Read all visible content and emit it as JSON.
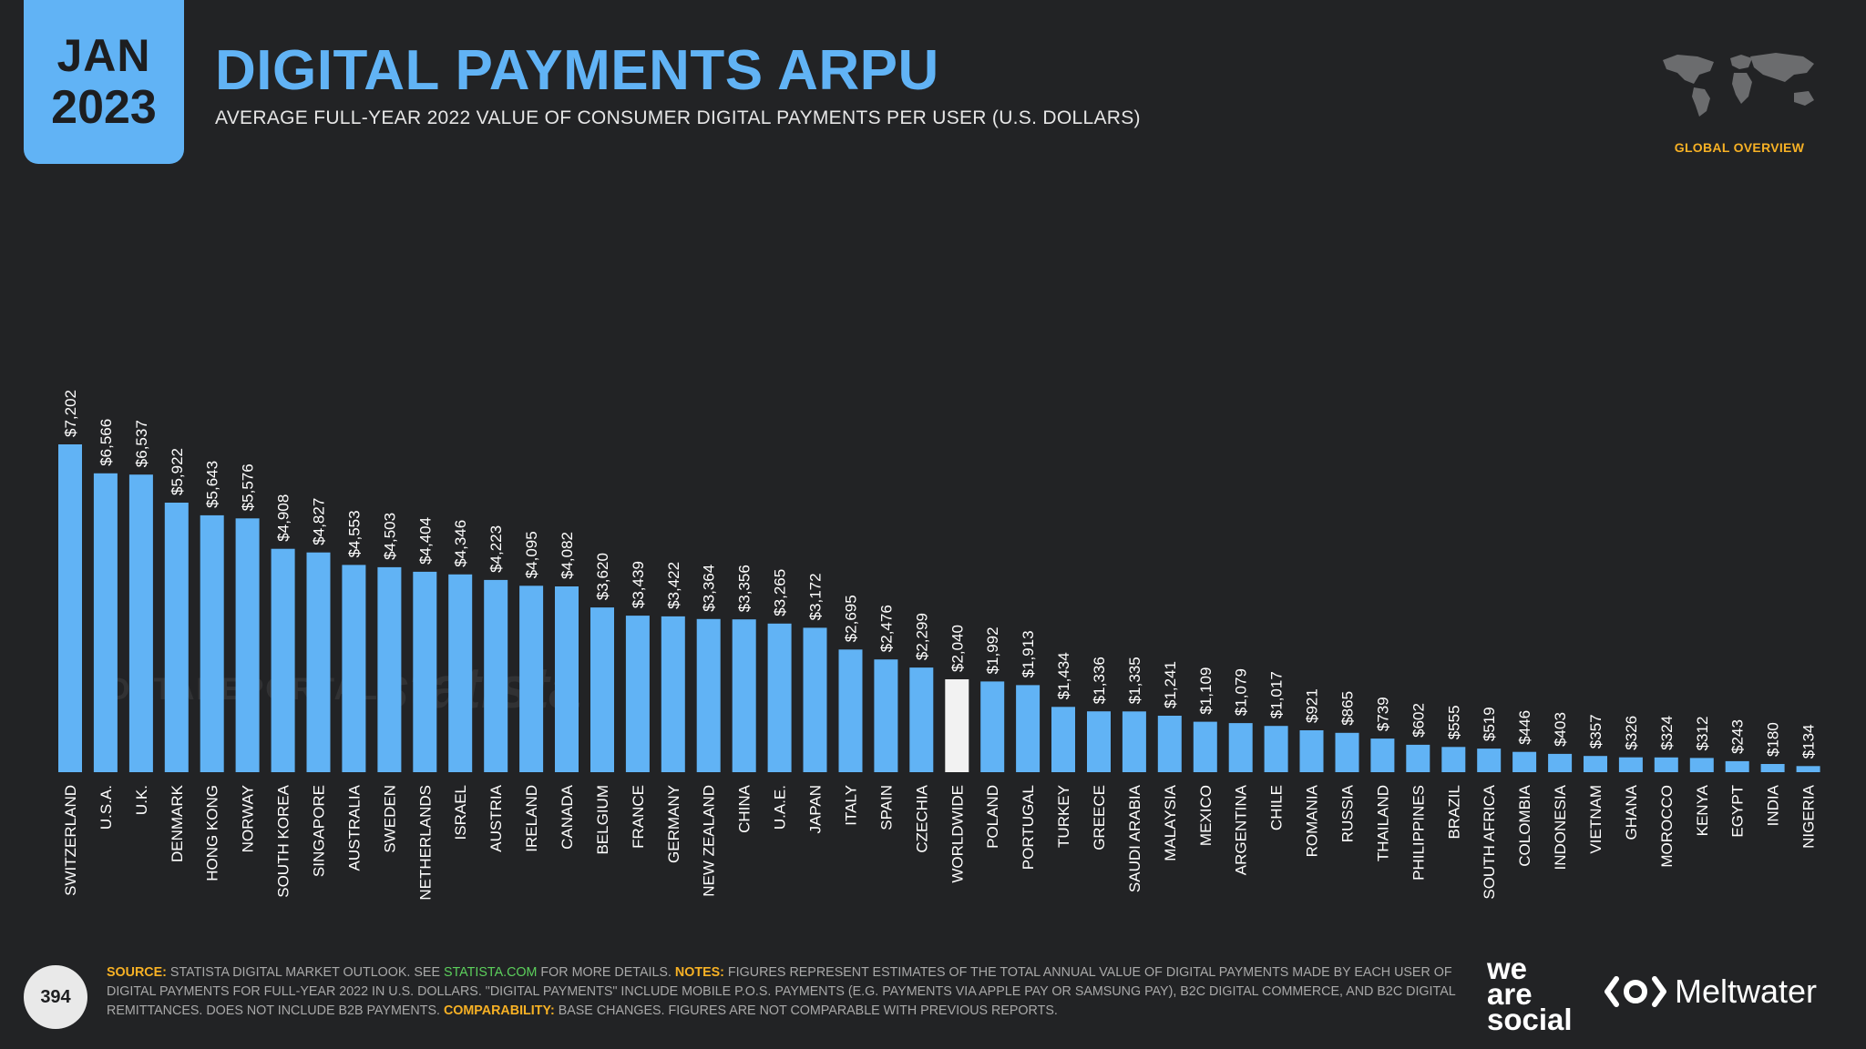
{
  "header": {
    "month": "JAN",
    "year": "2023",
    "title": "DIGITAL PAYMENTS ARPU",
    "subtitle": "AVERAGE FULL-YEAR 2022 VALUE OF CONSUMER DIGITAL PAYMENTS PER USER (U.S. DOLLARS)",
    "section": "GLOBAL OVERVIEW"
  },
  "watermarks": {
    "datareportal": "DATAREPORTAL",
    "statista": "statista"
  },
  "footer": {
    "page_number": "394",
    "source_label": "SOURCE:",
    "source_text": "STATISTA DIGITAL MARKET OUTLOOK. SEE",
    "source_link": "STATISTA.COM",
    "source_tail": "FOR MORE DETAILS.",
    "notes_label": "NOTES:",
    "notes_text": "FIGURES REPRESENT ESTIMATES OF THE TOTAL ANNUAL VALUE OF DIGITAL PAYMENTS MADE BY EACH USER OF DIGITAL PAYMENTS FOR FULL-YEAR 2022 IN U.S. DOLLARS. \"DIGITAL PAYMENTS\" INCLUDE MOBILE P.O.S. PAYMENTS (E.G. PAYMENTS VIA APPLE PAY OR SAMSUNG PAY), B2C DIGITAL COMMERCE, AND B2C DIGITAL REMITTANCES. DOES NOT INCLUDE B2B PAYMENTS.",
    "comparability_label": "COMPARABILITY:",
    "comparability_text": "BASE CHANGES. FIGURES ARE NOT COMPARABLE WITH PREVIOUS REPORTS.",
    "brand1_line1": "we",
    "brand1_line2": "are",
    "brand1_line3": "social",
    "brand2": "Meltwater"
  },
  "colors": {
    "bar": "#61b3f5",
    "highlight": "#f2f2f2",
    "accent": "#f7b125"
  },
  "chart_data": {
    "type": "bar",
    "categories": [
      "SWITZERLAND",
      "U.S.A.",
      "U.K.",
      "DENMARK",
      "HONG KONG",
      "NORWAY",
      "SOUTH KOREA",
      "SINGAPORE",
      "AUSTRALIA",
      "SWEDEN",
      "NETHERLANDS",
      "ISRAEL",
      "AUSTRIA",
      "IRELAND",
      "CANADA",
      "BELGIUM",
      "FRANCE",
      "GERMANY",
      "NEW ZEALAND",
      "CHINA",
      "U.A.E.",
      "JAPAN",
      "ITALY",
      "SPAIN",
      "CZECHIA",
      "WORLDWIDE",
      "POLAND",
      "PORTUGAL",
      "TURKEY",
      "GREECE",
      "SAUDI ARABIA",
      "MALAYSIA",
      "MEXICO",
      "ARGENTINA",
      "CHILE",
      "ROMANIA",
      "RUSSIA",
      "THAILAND",
      "PHILIPPINES",
      "BRAZIL",
      "SOUTH AFRICA",
      "COLOMBIA",
      "INDONESIA",
      "VIETNAM",
      "GHANA",
      "MOROCCO",
      "KENYA",
      "EGYPT",
      "INDIA",
      "NIGERIA"
    ],
    "values": [
      7202,
      6566,
      6537,
      5922,
      5643,
      5576,
      4908,
      4827,
      4553,
      4503,
      4404,
      4346,
      4223,
      4095,
      4082,
      3620,
      3439,
      3422,
      3364,
      3356,
      3265,
      3172,
      2695,
      2476,
      2299,
      2040,
      1992,
      1913,
      1434,
      1336,
      1335,
      1241,
      1109,
      1079,
      1017,
      921,
      865,
      739,
      602,
      555,
      519,
      446,
      403,
      357,
      326,
      324,
      312,
      243,
      180,
      134
    ],
    "labels": [
      "$7,202",
      "$6,566",
      "$6,537",
      "$5,922",
      "$5,643",
      "$5,576",
      "$4,908",
      "$4,827",
      "$4,553",
      "$4,503",
      "$4,404",
      "$4,346",
      "$4,223",
      "$4,095",
      "$4,082",
      "$3,620",
      "$3,439",
      "$3,422",
      "$3,364",
      "$3,356",
      "$3,265",
      "$3,172",
      "$2,695",
      "$2,476",
      "$2,299",
      "$2,040",
      "$1,992",
      "$1,913",
      "$1,434",
      "$1,336",
      "$1,335",
      "$1,241",
      "$1,109",
      "$1,079",
      "$1,017",
      "$921",
      "$865",
      "$739",
      "$602",
      "$555",
      "$519",
      "$446",
      "$403",
      "$357",
      "$326",
      "$324",
      "$312",
      "$243",
      "$180",
      "$134"
    ],
    "highlight": "WORLDWIDE",
    "ylim": [
      0,
      7202
    ]
  }
}
